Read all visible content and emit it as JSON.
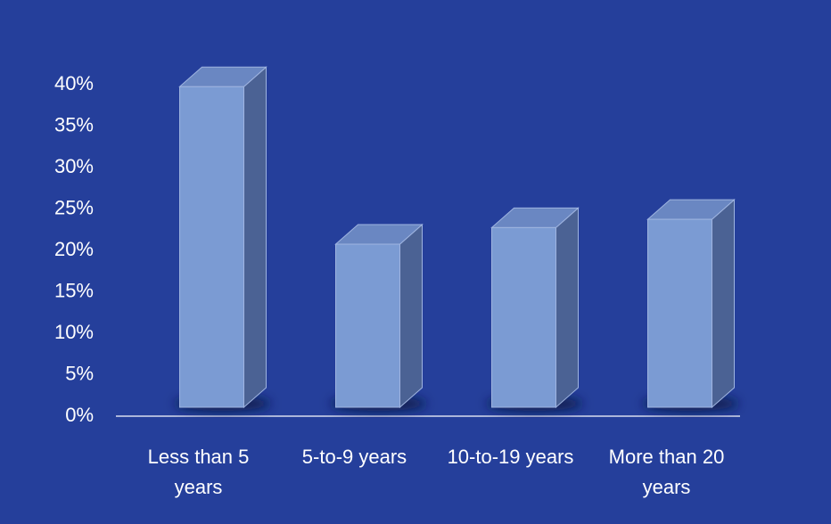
{
  "chart_data": {
    "type": "bar3d",
    "categories": [
      "Less than 5 years",
      "5-to-9 years",
      "10-to-19 years",
      "More than 20 years"
    ],
    "values": [
      39,
      20,
      22,
      23
    ],
    "color": "#7b9bd3",
    "ylim": [
      0,
      40
    ],
    "yticks": [
      {
        "value": 0,
        "label": "0%"
      },
      {
        "value": 5,
        "label": "5%"
      },
      {
        "value": 10,
        "label": "10%"
      },
      {
        "value": 15,
        "label": "15%"
      },
      {
        "value": 20,
        "label": "20%"
      },
      {
        "value": 25,
        "label": "25%"
      },
      {
        "value": 30,
        "label": "30%"
      },
      {
        "value": 35,
        "label": "35%"
      },
      {
        "value": 40,
        "label": "40%"
      }
    ],
    "grid": false
  }
}
